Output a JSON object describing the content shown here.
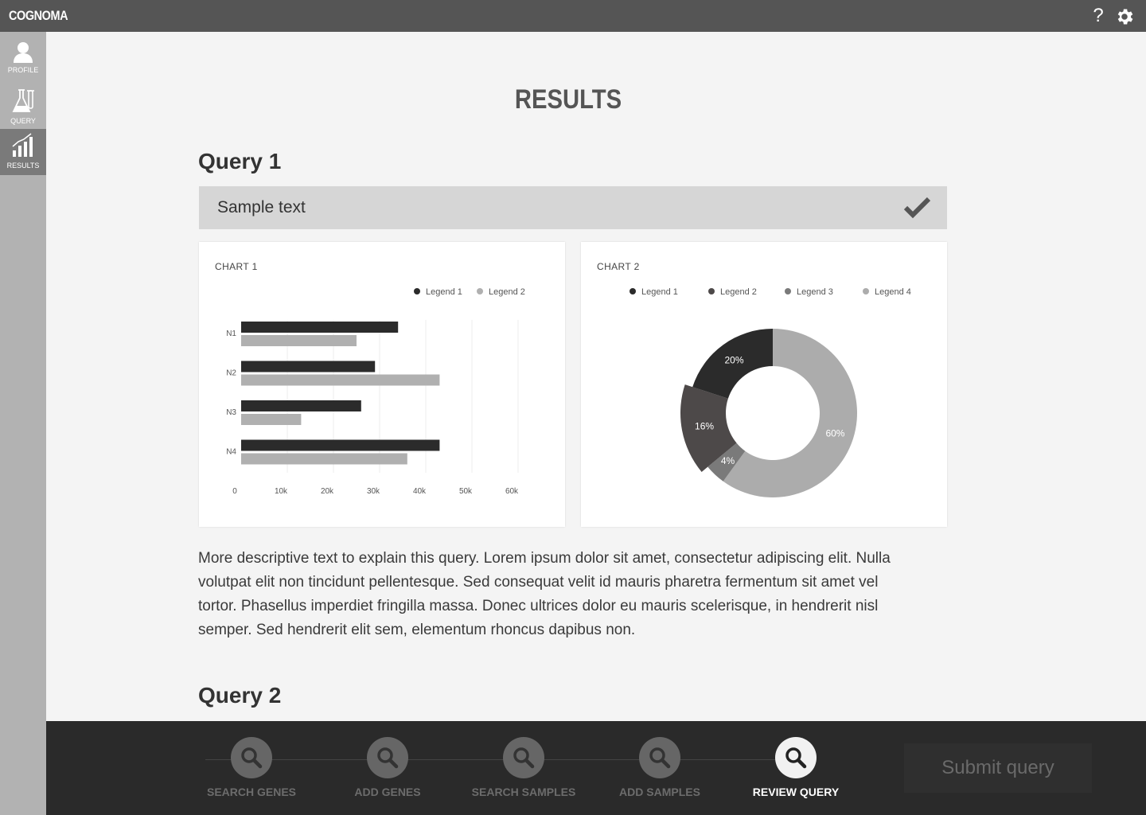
{
  "app": {
    "brand": "COGNOMA",
    "help_label": "?"
  },
  "sidebar": {
    "items": [
      {
        "label": "PROFILE",
        "icon": "user-icon",
        "active": false
      },
      {
        "label": "QUERY",
        "icon": "flask-icon",
        "active": false
      },
      {
        "label": "RESULTS",
        "icon": "bar-chart-icon",
        "active": true
      }
    ]
  },
  "main": {
    "title": "RESULTS",
    "queries": [
      {
        "title": "Query 1",
        "sample_text": "Sample text",
        "description": "More descriptive text to explain this query. Lorem ipsum dolor sit amet, consectetur adipiscing elit. Nulla volutpat elit non tincidunt pellentesque. Sed consequat velit id mauris pharetra fermentum sit amet vel tortor. Phasellus imperdiet fringilla massa. Donec ultrices dolor eu mauris scelerisque, in hendrerit nisl semper. Sed hendrerit elit sem, elementum rhoncus dapibus non."
      },
      {
        "title": "Query 2"
      }
    ]
  },
  "chart_data": [
    {
      "type": "bar",
      "orientation": "horizontal",
      "title": "CHART 1",
      "categories": [
        "N1",
        "N2",
        "N3",
        "N4"
      ],
      "series": [
        {
          "name": "Legend 1",
          "color": "#2b2b2b",
          "values": [
            34000,
            29000,
            26000,
            43000
          ]
        },
        {
          "name": "Legend 2",
          "color": "#b0b0b0",
          "values": [
            25000,
            43000,
            13000,
            36000
          ]
        }
      ],
      "xticks": [
        "0",
        "10k",
        "20k",
        "30k",
        "40k",
        "50k",
        "60k"
      ],
      "xlim": [
        0,
        60000
      ],
      "legend": "top-right",
      "grid": true
    },
    {
      "type": "pie",
      "donut": true,
      "title": "CHART 2",
      "slices": [
        {
          "name": "Legend 1",
          "value": 20,
          "label": "20%",
          "color": "#2b2b2b"
        },
        {
          "name": "Legend 2",
          "value": 16,
          "label": "16%",
          "color": "#4d4949"
        },
        {
          "name": "Legend 3",
          "value": 4,
          "label": "4%",
          "color": "#7a7a7a"
        },
        {
          "name": "Legend 4",
          "value": 60,
          "label": "60%",
          "color": "#acacac"
        }
      ],
      "legend": "top"
    }
  ],
  "steps": [
    {
      "label": "SEARCH GENES",
      "active": false
    },
    {
      "label": "ADD GENES",
      "active": false
    },
    {
      "label": "SEARCH SAMPLES",
      "active": false
    },
    {
      "label": "ADD SAMPLES",
      "active": false
    },
    {
      "label": "REVIEW QUERY",
      "active": true
    }
  ],
  "submit_label": "Submit query"
}
